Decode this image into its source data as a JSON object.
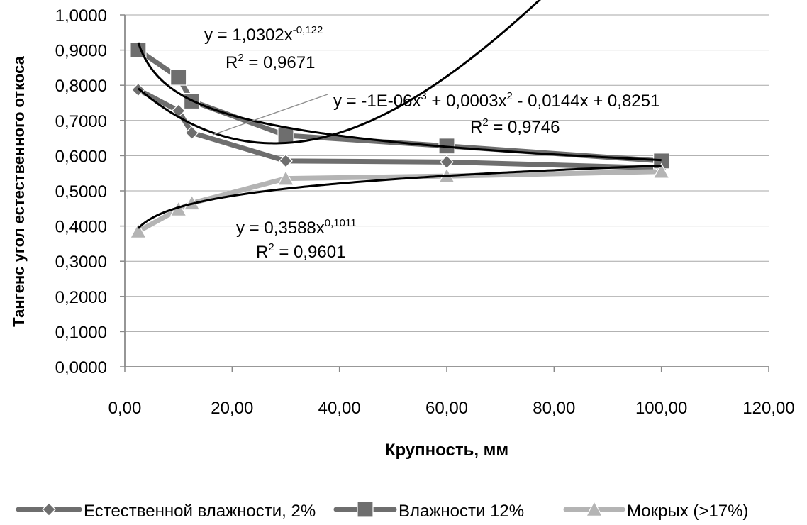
{
  "chart_data": {
    "type": "scatter",
    "xlabel": "Крупность, мм",
    "ylabel": "Тангенс угол естественного откоса",
    "xlim": [
      0,
      120
    ],
    "ylim": [
      0,
      1
    ],
    "x_ticks": [
      "0,00",
      "20,00",
      "40,00",
      "60,00",
      "80,00",
      "100,00",
      "120,00"
    ],
    "y_ticks": [
      "0,0000",
      "0,1000",
      "0,2000",
      "0,3000",
      "0,4000",
      "0,5000",
      "0,6000",
      "0,7000",
      "0,8000",
      "0,9000",
      "1,0000"
    ],
    "grid": "horizontal",
    "legend_position": "bottom",
    "series": [
      {
        "name": "Естественной влажности, 2%",
        "color": "#6e6e6e",
        "marker": "diamond",
        "x": [
          2.5,
          10,
          12.5,
          30,
          60,
          100
        ],
        "y": [
          0.7875,
          0.7275,
          0.665,
          0.585,
          0.582,
          0.565
        ]
      },
      {
        "name": "Влажности 12%",
        "color": "#6e6e6e",
        "marker": "square",
        "x": [
          2.5,
          10,
          12.5,
          30,
          60,
          100
        ],
        "y": [
          0.9,
          0.8225,
          0.755,
          0.6575,
          0.6275,
          0.585
        ]
      },
      {
        "name": "Мокрых (>17%)",
        "color": "#b4b4b4",
        "marker": "triangle",
        "x": [
          2.5,
          10,
          12.5,
          30,
          60,
          100
        ],
        "y": [
          0.385,
          0.4475,
          0.465,
          0.535,
          0.542,
          0.555
        ]
      }
    ],
    "trendlines": [
      {
        "series": "Влажности 12%",
        "kind": "power",
        "a": 1.0302,
        "b": -0.122
      },
      {
        "series": "Естественной влажности, 2%",
        "kind": "polynomial",
        "coefficients": [
          -1e-06,
          0.0003,
          -0.0144,
          0.8251
        ]
      },
      {
        "series": "Мокрых (>17%)",
        "kind": "power",
        "a": 0.3588,
        "b": 0.1011
      }
    ],
    "annotations": [
      {
        "name": "power-12",
        "equation_prefix": "y = 1,0302x",
        "equation_exponent": "-0,122",
        "r2_prefix": "R",
        "r2_sup": "2",
        "r2_suffix": " = 0,9671"
      },
      {
        "name": "poly-2",
        "equation_parts": [
          "y = -1E-06x",
          "3",
          " + 0,0003x",
          "2",
          " - 0,0144x + 0,8251"
        ],
        "r2_prefix": "R",
        "r2_sup": "2",
        "r2_suffix": " = 0,9746"
      },
      {
        "name": "power-wet",
        "equation_prefix": "y = 0,3588x",
        "equation_exponent": "0,1011",
        "r2_prefix": "R",
        "r2_sup": "2",
        "r2_suffix": " = 0,9601"
      }
    ]
  }
}
